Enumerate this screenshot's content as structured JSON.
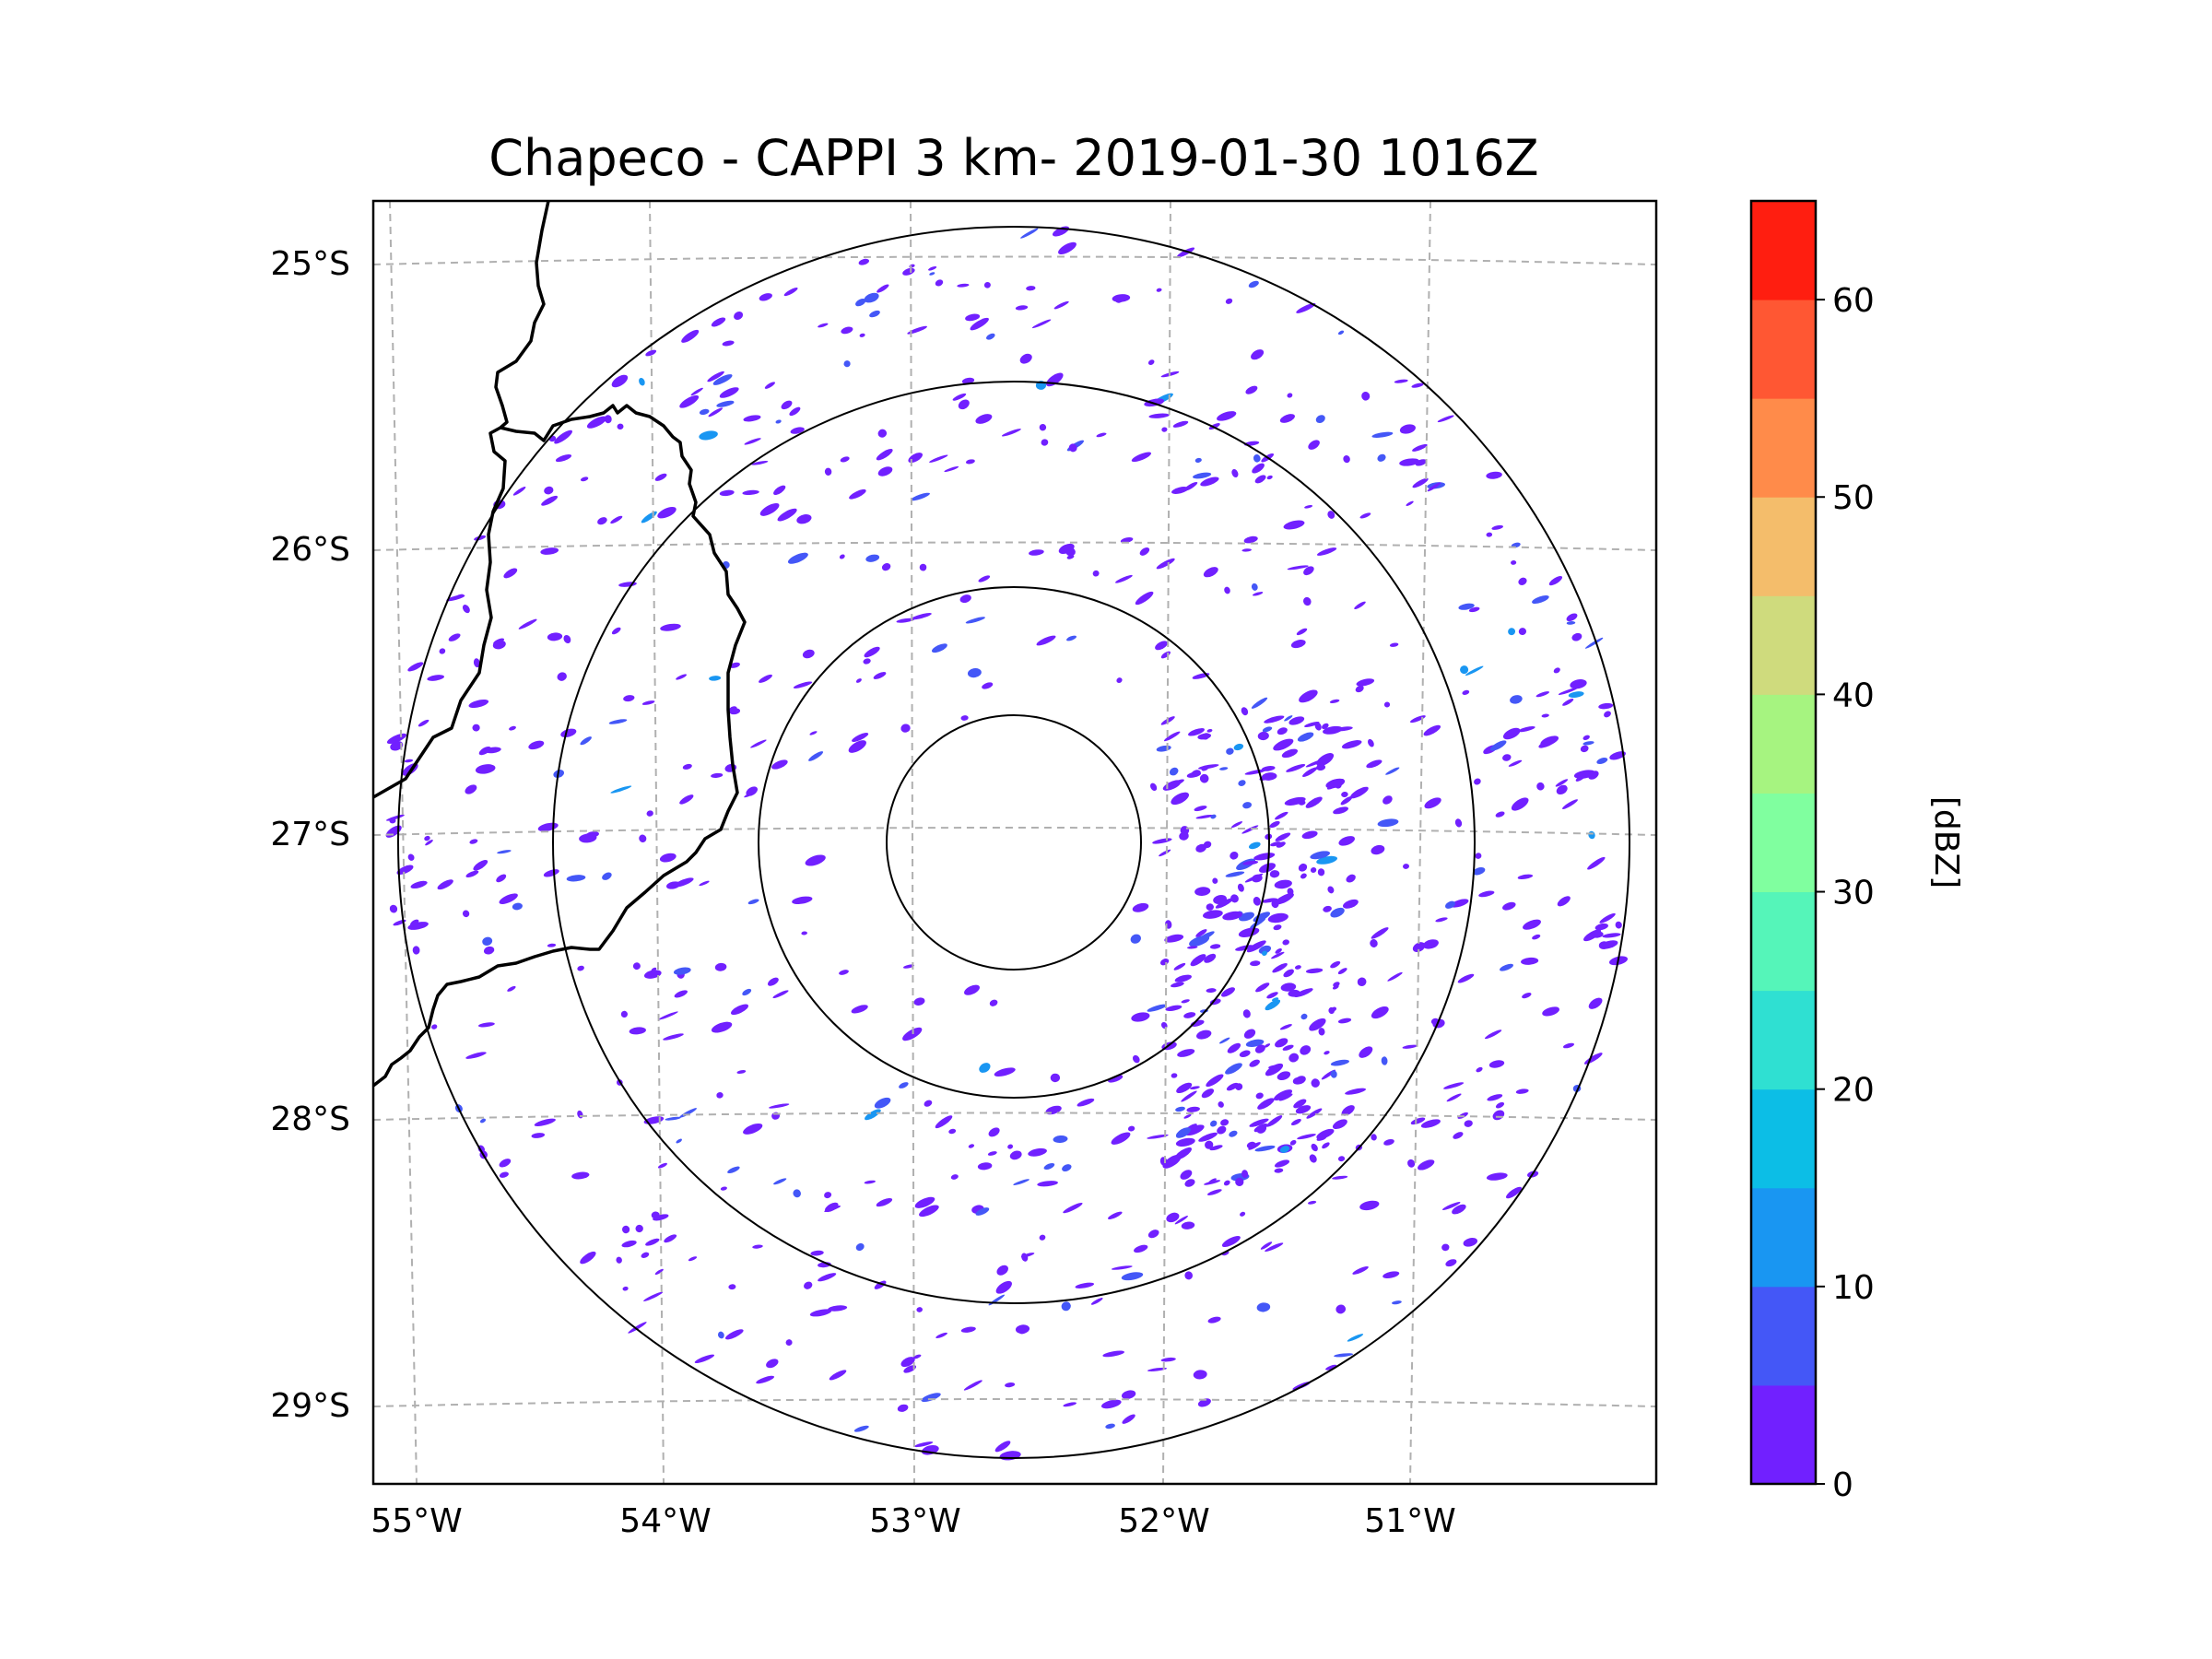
{
  "title": "Chapeco - CAPPI 3 km- 2019-01-30 1016Z",
  "map": {
    "lon_labels": [
      "55°W",
      "54°W",
      "53°W",
      "52°W",
      "51°W"
    ],
    "lat_labels": [
      "25°S",
      "26°S",
      "27°S",
      "28°S",
      "29°S"
    ],
    "range_rings_count": 4
  },
  "colorbar": {
    "label": "[dBZ]",
    "tick_labels": [
      "0",
      "10",
      "20",
      "30",
      "40",
      "50",
      "60"
    ],
    "colors": [
      "#7120ff",
      "#4457f7",
      "#1996f2",
      "#0cbee6",
      "#2fe0d2",
      "#55f5b9",
      "#80ff9f",
      "#a6f480",
      "#cfdb7d",
      "#f4bd6b",
      "#ff8b4a",
      "#ff5733",
      "#ff1e10"
    ]
  },
  "colors": {
    "echo_main": "#7120ff",
    "echo_mid": "#4457f7",
    "echo_light": "#1996f2",
    "grid": "#b0b0b0",
    "border": "#000000"
  }
}
